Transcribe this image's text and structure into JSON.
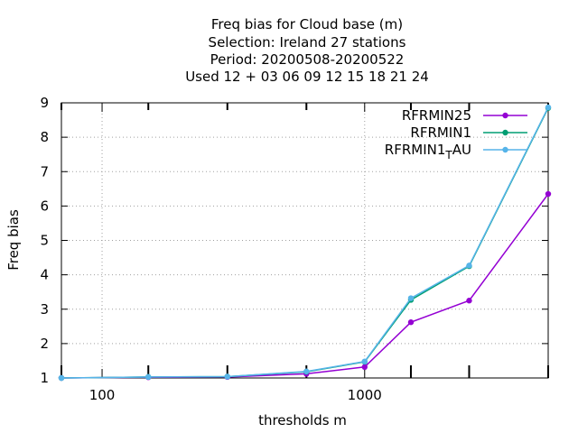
{
  "chart_data": {
    "type": "line",
    "title_lines": [
      "Freq bias  for Cloud base (m)",
      "Selection: Ireland      27 stations",
      "Period: 20200508-20200522",
      "Used  12 + 03 06 09 12 15 18 21 24"
    ],
    "xlabel": "thresholds m",
    "ylabel": "Freq bias",
    "x_scale": "log",
    "xlim": [
      70,
      5000
    ],
    "ylim": [
      1,
      9
    ],
    "x_tick_labels": [
      {
        "value": 100,
        "label": "100"
      },
      {
        "value": 1000,
        "label": "1000"
      }
    ],
    "y_tick_labels": [
      "1",
      "2",
      "3",
      "4",
      "5",
      "6",
      "7",
      "8",
      "9"
    ],
    "grid": true,
    "legend_position": "top-right",
    "series": [
      {
        "name": "RFRMIN25",
        "color": "#9400d3",
        "x": [
          70,
          150,
          300,
          600,
          1000,
          1500,
          2500,
          5000
        ],
        "y": [
          1.0,
          1.02,
          1.03,
          1.12,
          1.32,
          2.62,
          3.25,
          6.35
        ]
      },
      {
        "name": "RFRMIN1",
        "color": "#009e73",
        "x": [
          70,
          150,
          300,
          600,
          1000,
          1500,
          2500,
          5000
        ],
        "y": [
          1.0,
          1.03,
          1.04,
          1.18,
          1.47,
          3.27,
          4.25,
          8.85
        ]
      },
      {
        "name": "RFRMIN1_TAU",
        "name_parts": {
          "base": "RFRMIN1",
          "sub": "T",
          "tail": "AU"
        },
        "color": "#56b4e9",
        "x": [
          70,
          150,
          300,
          600,
          1000,
          1500,
          2500,
          5000
        ],
        "y": [
          1.0,
          1.03,
          1.04,
          1.19,
          1.48,
          3.32,
          4.27,
          8.87
        ]
      }
    ]
  }
}
